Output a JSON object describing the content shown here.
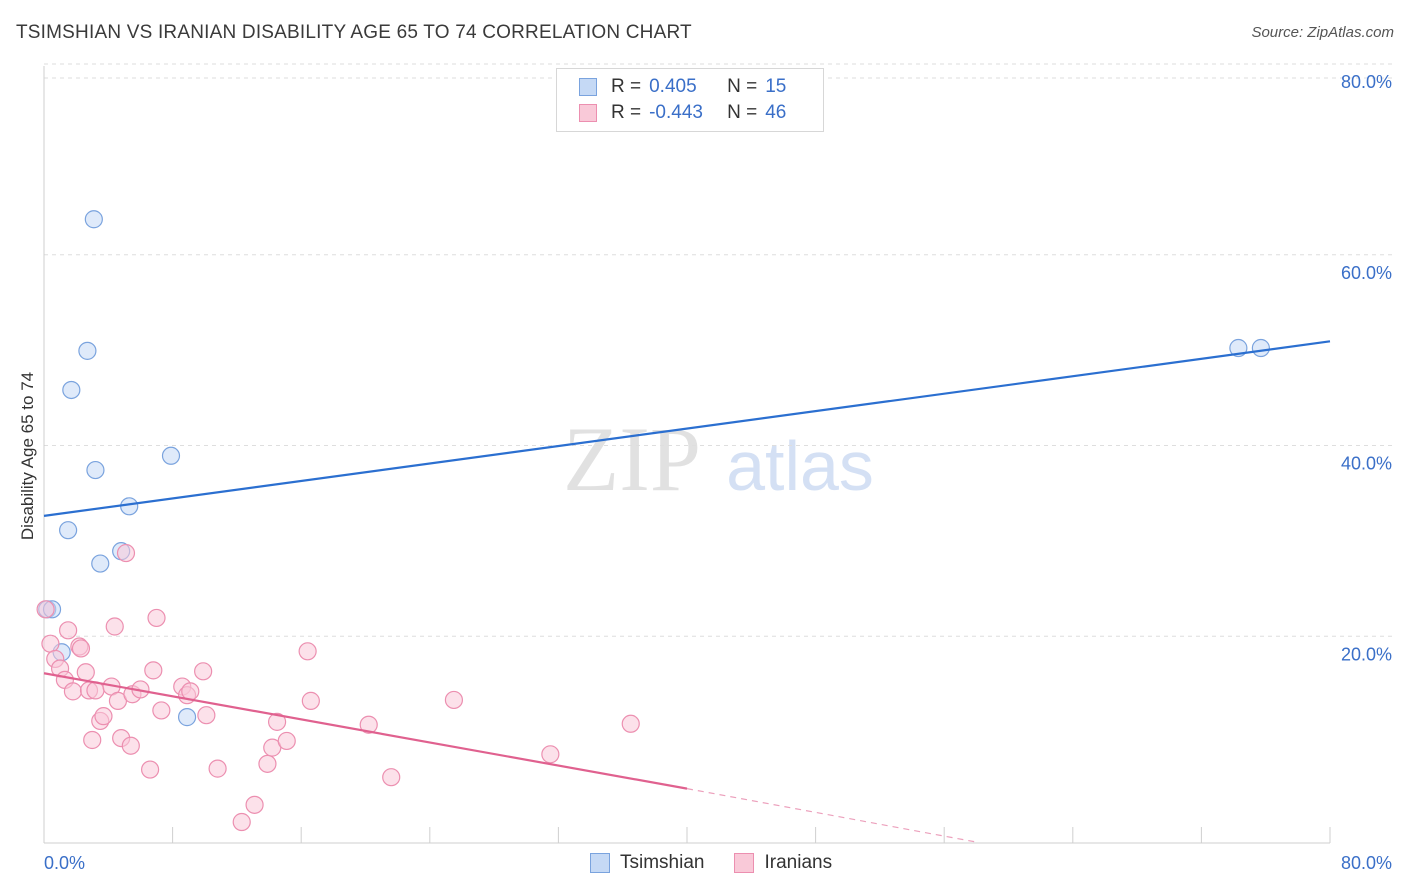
{
  "title": "TSIMSHIAN VS IRANIAN DISABILITY AGE 65 TO 74 CORRELATION CHART",
  "source": "Source: ZipAtlas.com",
  "watermark": {
    "zip": "ZIP",
    "atlas": "atlas"
  },
  "legend_top": [
    {
      "r_label": "R =",
      "r_value": "0.405",
      "n_label": "N =",
      "n_value": "15"
    },
    {
      "r_label": "R =",
      "r_value": "-0.443",
      "n_label": "N =",
      "n_value": "46"
    }
  ],
  "legend_bottom": [
    "Tsimshian",
    "Iranians"
  ],
  "colors": {
    "tsimshian_fill": "#c5d9f5",
    "tsimshian_stroke": "#7aa3de",
    "tsimshian_line": "#2b6fd0",
    "iranians_fill": "#f9c9d8",
    "iranians_stroke": "#ec8fb0",
    "iranians_line": "#e0618f",
    "axis_label": "#3a6fc8",
    "grid": "#dedede"
  },
  "chart_data": {
    "type": "scatter",
    "title": "TSIMSHIAN VS IRANIAN DISABILITY AGE 65 TO 74 CORRELATION CHART",
    "xlabel": "",
    "ylabel": "Disability Age 65 to 74",
    "xlim": [
      0,
      80
    ],
    "ylim": [
      0,
      80
    ],
    "x_tick_labels": [
      "0.0%",
      "80.0%"
    ],
    "y_tick_labels": [
      "20.0%",
      "40.0%",
      "60.0%",
      "80.0%"
    ],
    "y_gridlines": [
      20,
      40,
      60,
      80
    ],
    "grid": true,
    "legend_position": "bottom",
    "series": [
      {
        "name": "Tsimshian",
        "points": [
          [
            0.2,
            24.5
          ],
          [
            0.5,
            24.5
          ],
          [
            1.1,
            20.0
          ],
          [
            1.5,
            32.8
          ],
          [
            1.7,
            47.5
          ],
          [
            2.7,
            51.6
          ],
          [
            3.1,
            65.4
          ],
          [
            3.2,
            39.1
          ],
          [
            3.5,
            29.3
          ],
          [
            4.8,
            30.6
          ],
          [
            5.3,
            35.3
          ],
          [
            7.9,
            40.6
          ],
          [
            8.9,
            13.2
          ],
          [
            74.3,
            51.9
          ],
          [
            75.7,
            51.9
          ]
        ],
        "trend": {
          "x": [
            0,
            80
          ],
          "y": [
            34.3,
            52.6
          ]
        }
      },
      {
        "name": "Iranians",
        "points": [
          [
            0.1,
            24.5
          ],
          [
            0.4,
            20.9
          ],
          [
            0.7,
            19.3
          ],
          [
            1.0,
            18.3
          ],
          [
            1.3,
            17.1
          ],
          [
            1.5,
            22.3
          ],
          [
            1.8,
            15.9
          ],
          [
            2.2,
            20.6
          ],
          [
            2.3,
            20.4
          ],
          [
            2.6,
            17.9
          ],
          [
            2.8,
            16.0
          ],
          [
            3.0,
            10.8
          ],
          [
            3.2,
            16.0
          ],
          [
            3.5,
            12.8
          ],
          [
            3.7,
            13.3
          ],
          [
            4.2,
            16.4
          ],
          [
            4.4,
            22.7
          ],
          [
            4.6,
            14.9
          ],
          [
            4.8,
            11.0
          ],
          [
            5.1,
            30.4
          ],
          [
            5.4,
            10.2
          ],
          [
            5.5,
            15.6
          ],
          [
            6.0,
            16.1
          ],
          [
            6.6,
            7.7
          ],
          [
            6.8,
            18.1
          ],
          [
            7.0,
            23.6
          ],
          [
            7.3,
            13.9
          ],
          [
            8.6,
            16.4
          ],
          [
            8.9,
            15.5
          ],
          [
            9.1,
            15.9
          ],
          [
            9.9,
            18.0
          ],
          [
            10.1,
            13.4
          ],
          [
            10.8,
            7.8
          ],
          [
            12.3,
            2.2
          ],
          [
            13.1,
            4.0
          ],
          [
            13.9,
            8.3
          ],
          [
            14.2,
            10.0
          ],
          [
            14.5,
            12.7
          ],
          [
            15.1,
            10.7
          ],
          [
            16.4,
            20.1
          ],
          [
            16.6,
            14.9
          ],
          [
            20.2,
            12.4
          ],
          [
            21.6,
            6.9
          ],
          [
            25.5,
            15.0
          ],
          [
            31.5,
            9.3
          ],
          [
            36.5,
            12.5
          ]
        ],
        "trend": {
          "x": [
            0,
            40
          ],
          "y": [
            17.8,
            5.7
          ]
        },
        "trend_dashed": {
          "x": [
            40,
            58
          ],
          "y": [
            5.7,
            0.1
          ]
        }
      }
    ]
  }
}
